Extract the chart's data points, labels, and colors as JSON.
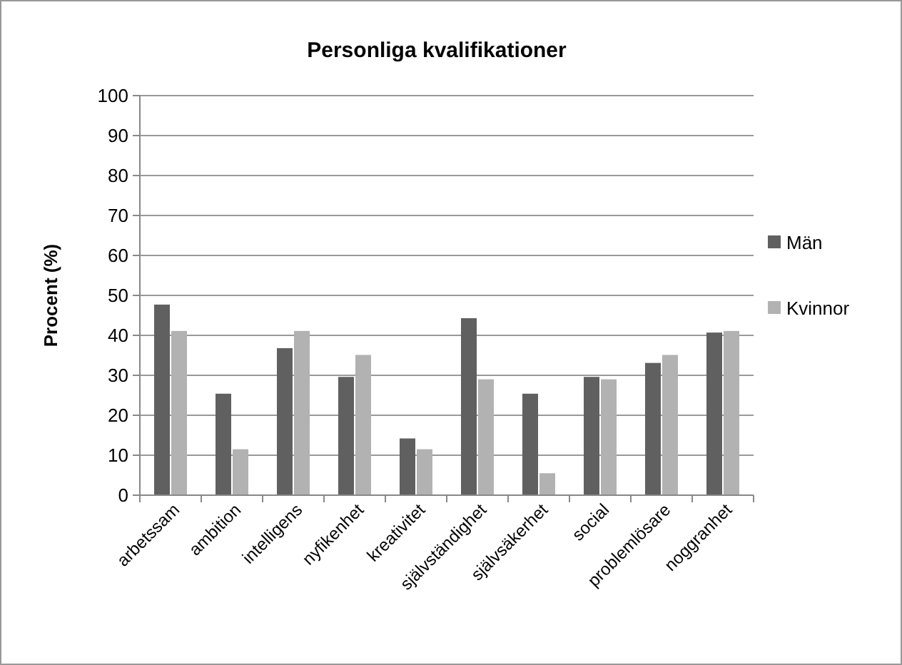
{
  "chart_data": {
    "type": "bar",
    "title": "Personliga kvalifikationer",
    "ylabel": "Procent (%)",
    "categories": [
      "arbetssam",
      "ambition",
      "intelligens",
      "nyfikenhet",
      "kreativitet",
      "självständighet",
      "självsäkerhet",
      "social",
      "problemlösare",
      "noggranhet"
    ],
    "series": [
      {
        "name": "Män",
        "color": "#606060",
        "values": [
          47.7,
          25.4,
          36.8,
          29.6,
          14.2,
          44.3,
          25.4,
          29.6,
          33.1,
          40.7
        ]
      },
      {
        "name": "Kvinnor",
        "color": "#b2b2b2",
        "values": [
          41.1,
          11.5,
          41.1,
          35.1,
          11.5,
          29.0,
          5.5,
          29.0,
          35.1,
          41.1
        ]
      }
    ],
    "ylim": [
      0,
      100
    ],
    "yticks": [
      0,
      10,
      20,
      30,
      40,
      50,
      60,
      70,
      80,
      90,
      100
    ],
    "grid": "y",
    "legend": "right"
  }
}
